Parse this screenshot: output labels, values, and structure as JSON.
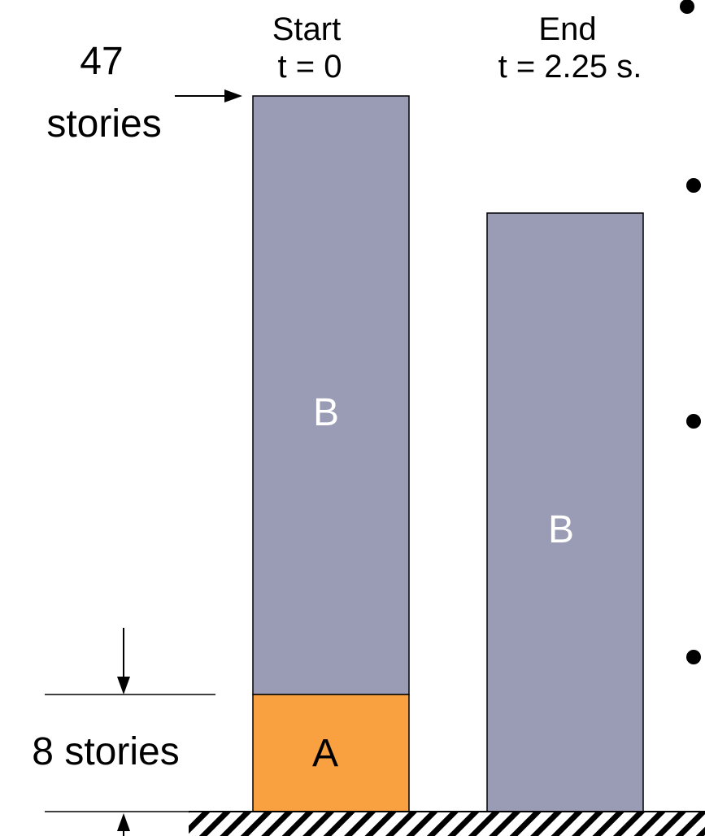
{
  "columns": {
    "start": {
      "title": "Start",
      "time_label": "t = 0"
    },
    "end": {
      "title": "End",
      "time_label": "t = 2.25 s."
    }
  },
  "dimensions": {
    "top_value": "47",
    "top_unit": "stories",
    "bottom_label": "8 stories"
  },
  "blocks": {
    "start_upper": "B",
    "start_lower": "A",
    "end_block": "B"
  },
  "colors": {
    "block_b": "#9a9bb5",
    "block_a": "#f9a040",
    "block_b_label": "#ffffff",
    "block_a_label": "#000000",
    "outline": "#000000"
  },
  "icons": {
    "ground": "hatched-ground-icon",
    "bullet": "bullet-dot-icon"
  }
}
